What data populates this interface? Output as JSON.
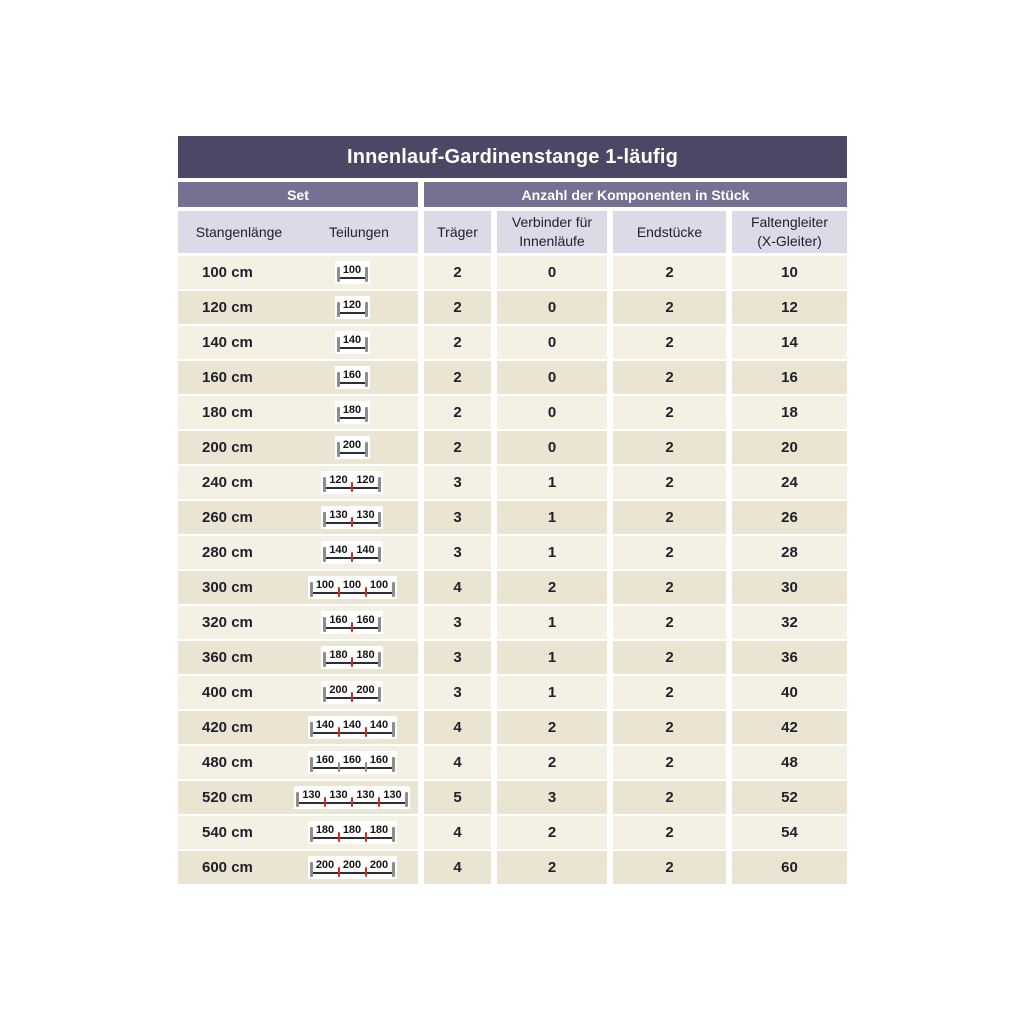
{
  "title": "Innenlauf-Gardinenstange 1-läufig",
  "group_headers": {
    "set": "Set",
    "components": "Anzahl der Komponenten in Stück"
  },
  "columns": {
    "length": "Stangenlänge",
    "divisions": "Teilungen",
    "brackets": "Träger",
    "connectors": {
      "line1": "Verbinder für",
      "line2": "Innenläufe"
    },
    "end_pieces": "Endstücke",
    "gliders": {
      "line1": "Faltengleiter",
      "line2": "(X-Gleiter)"
    }
  },
  "colors": {
    "title_bg": "#4d4766",
    "subheader_bg": "#767093",
    "colheader_bg": "#dcdae7",
    "row_light": "#f4f1e4",
    "row_dark": "#eae4d2",
    "text_dark": "#21202c",
    "pin_gray": "#8d8d8d",
    "pin_red": "#d32a1c",
    "dim_line": "#2e2d33",
    "icon_bg": "#ffffff"
  },
  "rows": [
    {
      "length": "100 cm",
      "segments": [
        "100"
      ],
      "divider": "red",
      "traeger": "2",
      "verbinder": "0",
      "endstuecke": "2",
      "faltengleiter": "10"
    },
    {
      "length": "120 cm",
      "segments": [
        "120"
      ],
      "divider": "red",
      "traeger": "2",
      "verbinder": "0",
      "endstuecke": "2",
      "faltengleiter": "12"
    },
    {
      "length": "140 cm",
      "segments": [
        "140"
      ],
      "divider": "red",
      "traeger": "2",
      "verbinder": "0",
      "endstuecke": "2",
      "faltengleiter": "14"
    },
    {
      "length": "160 cm",
      "segments": [
        "160"
      ],
      "divider": "red",
      "traeger": "2",
      "verbinder": "0",
      "endstuecke": "2",
      "faltengleiter": "16"
    },
    {
      "length": "180 cm",
      "segments": [
        "180"
      ],
      "divider": "red",
      "traeger": "2",
      "verbinder": "0",
      "endstuecke": "2",
      "faltengleiter": "18"
    },
    {
      "length": "200 cm",
      "segments": [
        "200"
      ],
      "divider": "red",
      "traeger": "2",
      "verbinder": "0",
      "endstuecke": "2",
      "faltengleiter": "20"
    },
    {
      "length": "240 cm",
      "segments": [
        "120",
        "120"
      ],
      "divider": "red",
      "traeger": "3",
      "verbinder": "1",
      "endstuecke": "2",
      "faltengleiter": "24"
    },
    {
      "length": "260 cm",
      "segments": [
        "130",
        "130"
      ],
      "divider": "red",
      "traeger": "3",
      "verbinder": "1",
      "endstuecke": "2",
      "faltengleiter": "26"
    },
    {
      "length": "280 cm",
      "segments": [
        "140",
        "140"
      ],
      "divider": "red",
      "traeger": "3",
      "verbinder": "1",
      "endstuecke": "2",
      "faltengleiter": "28"
    },
    {
      "length": "300 cm",
      "segments": [
        "100",
        "100",
        "100"
      ],
      "divider": "red",
      "traeger": "4",
      "verbinder": "2",
      "endstuecke": "2",
      "faltengleiter": "30"
    },
    {
      "length": "320 cm",
      "segments": [
        "160",
        "160"
      ],
      "divider": "red",
      "traeger": "3",
      "verbinder": "1",
      "endstuecke": "2",
      "faltengleiter": "32"
    },
    {
      "length": "360 cm",
      "segments": [
        "180",
        "180"
      ],
      "divider": "red",
      "traeger": "3",
      "verbinder": "1",
      "endstuecke": "2",
      "faltengleiter": "36"
    },
    {
      "length": "400 cm",
      "segments": [
        "200",
        "200"
      ],
      "divider": "red",
      "traeger": "3",
      "verbinder": "1",
      "endstuecke": "2",
      "faltengleiter": "40"
    },
    {
      "length": "420 cm",
      "segments": [
        "140",
        "140",
        "140"
      ],
      "divider": "red",
      "traeger": "4",
      "verbinder": "2",
      "endstuecke": "2",
      "faltengleiter": "42"
    },
    {
      "length": "480 cm",
      "segments": [
        "160",
        "160",
        "160"
      ],
      "divider": "gray",
      "traeger": "4",
      "verbinder": "2",
      "endstuecke": "2",
      "faltengleiter": "48"
    },
    {
      "length": "520 cm",
      "segments": [
        "130",
        "130",
        "130",
        "130"
      ],
      "divider": "red",
      "traeger": "5",
      "verbinder": "3",
      "endstuecke": "2",
      "faltengleiter": "52"
    },
    {
      "length": "540 cm",
      "segments": [
        "180",
        "180",
        "180"
      ],
      "divider": "red",
      "traeger": "4",
      "verbinder": "2",
      "endstuecke": "2",
      "faltengleiter": "54"
    },
    {
      "length": "600 cm",
      "segments": [
        "200",
        "200",
        "200"
      ],
      "divider": "red",
      "traeger": "4",
      "verbinder": "2",
      "endstuecke": "2",
      "faltengleiter": "60"
    }
  ]
}
